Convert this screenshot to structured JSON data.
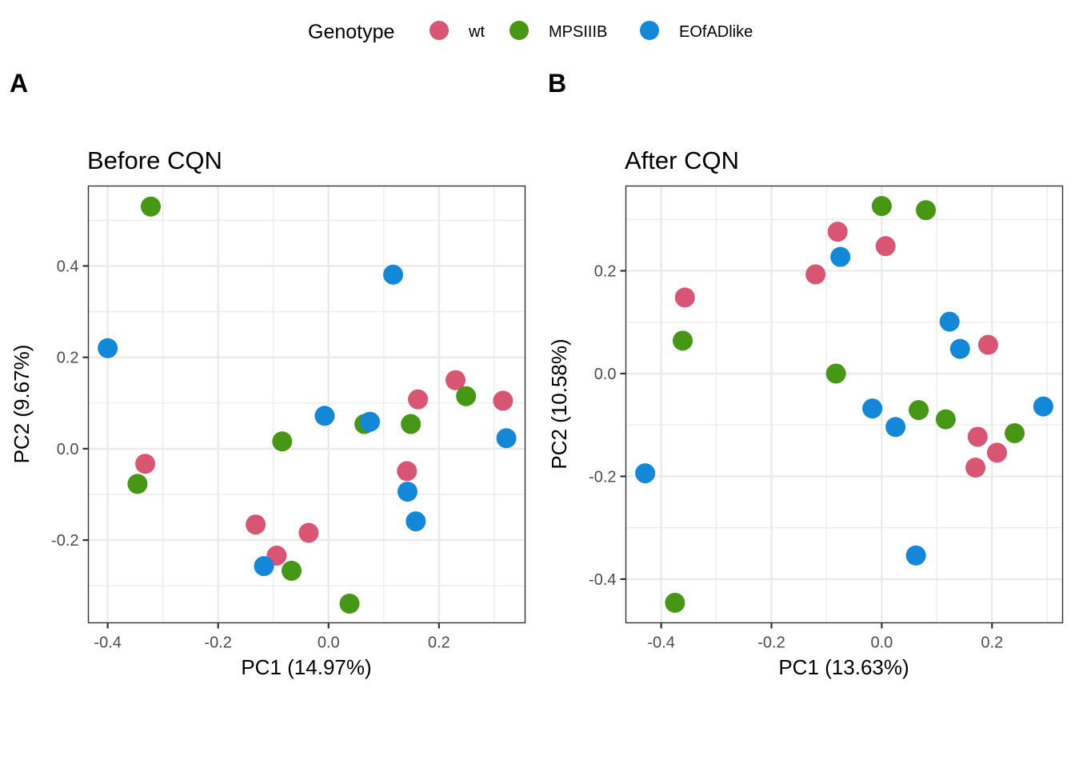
{
  "legend": {
    "title": "Genotype",
    "items": [
      {
        "label": "wt",
        "color": "#D95574"
      },
      {
        "label": "MPSIIIB",
        "color": "#459714"
      },
      {
        "label": "EOfADlike",
        "color": "#1387D8"
      }
    ]
  },
  "chart_data": [
    {
      "type": "scatter",
      "panel_tag": "A",
      "title": "Before CQN",
      "xlabel": "PC1 (14.97%)",
      "ylabel": "PC2 (9.67%)",
      "xlim": [
        -0.435,
        0.356
      ],
      "ylim": [
        -0.381,
        0.575
      ],
      "xticks": [
        -0.4,
        -0.2,
        0.0,
        0.2
      ],
      "xtick_labels": [
        "-0.4",
        "-0.2",
        "0.0",
        "0.2"
      ],
      "yticks": [
        -0.2,
        0.0,
        0.2,
        0.4
      ],
      "ytick_labels": [
        "-0.2",
        "0.0",
        "0.2",
        "0.4"
      ],
      "grid": true,
      "legend": "top",
      "series": [
        {
          "name": "wt",
          "points": [
            [
              0.23,
              0.15
            ],
            [
              0.162,
              0.108
            ],
            [
              0.316,
              0.105
            ],
            [
              -0.332,
              -0.033
            ],
            [
              0.142,
              -0.049
            ],
            [
              -0.132,
              -0.166
            ],
            [
              -0.036,
              -0.184
            ],
            [
              -0.094,
              -0.234
            ]
          ]
        },
        {
          "name": "MPSIIIB",
          "points": [
            [
              -0.322,
              0.53
            ],
            [
              0.249,
              0.115
            ],
            [
              0.065,
              0.054
            ],
            [
              0.149,
              0.054
            ],
            [
              -0.084,
              0.016
            ],
            [
              -0.346,
              -0.077
            ],
            [
              -0.067,
              -0.267
            ],
            [
              0.038,
              -0.339
            ]
          ]
        },
        {
          "name": "EOfADlike",
          "points": [
            [
              0.117,
              0.381
            ],
            [
              -0.4,
              0.22
            ],
            [
              -0.007,
              0.072
            ],
            [
              0.075,
              0.059
            ],
            [
              0.322,
              0.023
            ],
            [
              0.143,
              -0.094
            ],
            [
              0.158,
              -0.159
            ],
            [
              -0.117,
              -0.257
            ]
          ]
        }
      ]
    },
    {
      "type": "scatter",
      "panel_tag": "B",
      "title": "After CQN",
      "xlabel": "PC1 (13.63%)",
      "ylabel": "PC2 (10.58%)",
      "xlim": [
        -0.464,
        0.328
      ],
      "ylim": [
        -0.485,
        0.365
      ],
      "xticks": [
        -0.4,
        -0.2,
        0.0,
        0.2
      ],
      "xtick_labels": [
        "-0.4",
        "-0.2",
        "0.0",
        "0.2"
      ],
      "yticks": [
        -0.4,
        -0.2,
        0.0,
        0.2
      ],
      "ytick_labels": [
        "-0.4",
        "-0.2",
        "0.0",
        "0.2"
      ],
      "grid": true,
      "legend": "top",
      "series": [
        {
          "name": "wt",
          "points": [
            [
              -0.08,
              0.276
            ],
            [
              0.007,
              0.248
            ],
            [
              -0.12,
              0.193
            ],
            [
              -0.357,
              0.148
            ],
            [
              0.193,
              0.056
            ],
            [
              0.174,
              -0.123
            ],
            [
              0.209,
              -0.154
            ],
            [
              0.17,
              -0.183
            ]
          ]
        },
        {
          "name": "MPSIIIB",
          "points": [
            [
              0.0,
              0.326
            ],
            [
              0.08,
              0.318
            ],
            [
              -0.361,
              0.064
            ],
            [
              -0.083,
              0.0
            ],
            [
              0.067,
              -0.071
            ],
            [
              0.116,
              -0.089
            ],
            [
              0.241,
              -0.116
            ],
            [
              -0.375,
              -0.446
            ]
          ]
        },
        {
          "name": "EOfADlike",
          "points": [
            [
              -0.075,
              0.227
            ],
            [
              0.123,
              0.101
            ],
            [
              0.142,
              0.048
            ],
            [
              -0.017,
              -0.068
            ],
            [
              0.293,
              -0.064
            ],
            [
              0.025,
              -0.104
            ],
            [
              -0.429,
              -0.194
            ],
            [
              0.062,
              -0.354
            ]
          ]
        }
      ]
    }
  ]
}
